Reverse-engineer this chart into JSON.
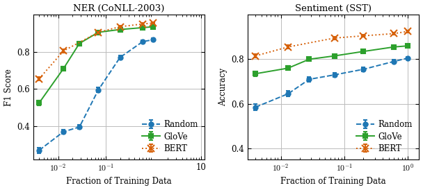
{
  "ner": {
    "title": "NER (CoNLL-2003)",
    "xlabel": "Fraction of Training Data",
    "ylabel": "F1 Score",
    "xlim": [
      0.003,
      12
    ],
    "ylim": [
      0.22,
      1.0
    ],
    "yticks": [
      0.4,
      0.6,
      0.8
    ],
    "xticks": [
      0.01,
      0.1,
      10
    ],
    "xticklabels": [
      "$10^{-2}$",
      "$10^{-1}$",
      "10"
    ],
    "random": {
      "x": [
        0.004,
        0.013,
        0.028,
        0.07,
        0.2,
        0.6,
        1.0
      ],
      "y": [
        0.27,
        0.37,
        0.395,
        0.595,
        0.77,
        0.855,
        0.865
      ],
      "yerr": [
        0.015,
        0.012,
        0.012,
        0.012,
        0.01,
        0.008,
        0.008
      ],
      "color": "#1f77b4",
      "linestyle": "--",
      "marker": "o",
      "label": "Random"
    },
    "glove": {
      "x": [
        0.004,
        0.013,
        0.028,
        0.07,
        0.2,
        0.6,
        1.0
      ],
      "y": [
        0.525,
        0.71,
        0.845,
        0.905,
        0.92,
        0.93,
        0.935
      ],
      "yerr": [
        0.012,
        0.01,
        0.008,
        0.006,
        0.005,
        0.005,
        0.004
      ],
      "color": "#2ca02c",
      "linestyle": "-",
      "marker": "s",
      "label": "GloVe"
    },
    "bert": {
      "x": [
        0.004,
        0.013,
        0.07,
        0.2,
        0.6,
        1.0
      ],
      "y": [
        0.655,
        0.805,
        0.905,
        0.935,
        0.95,
        0.955
      ],
      "yerr": [
        0.01,
        0.009,
        0.006,
        0.005,
        0.004,
        0.004
      ],
      "color": "#d6610a",
      "linestyle": ":",
      "marker": "x",
      "label": "BERT"
    }
  },
  "sst": {
    "title": "Sentiment (SST)",
    "xlabel": "Fraction of Training Data",
    "ylabel": "Accuracy",
    "xlim": [
      0.003,
      1.5
    ],
    "ylim": [
      0.35,
      1.0
    ],
    "yticks": [
      0.4,
      0.6,
      0.8
    ],
    "xticks": [
      0.01,
      0.1,
      1.0
    ],
    "xticklabels": [
      "$10^{-2}$",
      "$10^{-1}$",
      "$10^{0}$"
    ],
    "random": {
      "x": [
        0.004,
        0.013,
        0.028,
        0.07,
        0.2,
        0.6,
        1.0
      ],
      "y": [
        0.585,
        0.645,
        0.71,
        0.73,
        0.755,
        0.79,
        0.805
      ],
      "yerr": [
        0.015,
        0.012,
        0.01,
        0.01,
        0.009,
        0.008,
        0.007
      ],
      "color": "#1f77b4",
      "linestyle": "--",
      "marker": "o",
      "label": "Random"
    },
    "glove": {
      "x": [
        0.004,
        0.013,
        0.028,
        0.07,
        0.2,
        0.6,
        1.0
      ],
      "y": [
        0.735,
        0.76,
        0.8,
        0.815,
        0.835,
        0.855,
        0.86
      ],
      "yerr": [
        0.01,
        0.009,
        0.008,
        0.007,
        0.006,
        0.006,
        0.005
      ],
      "color": "#2ca02c",
      "linestyle": "-",
      "marker": "s",
      "label": "GloVe"
    },
    "bert": {
      "x": [
        0.004,
        0.013,
        0.07,
        0.2,
        0.6,
        1.0
      ],
      "y": [
        0.815,
        0.855,
        0.895,
        0.905,
        0.915,
        0.925
      ],
      "yerr": [
        0.009,
        0.008,
        0.006,
        0.005,
        0.005,
        0.004
      ],
      "color": "#d6610a",
      "linestyle": ":",
      "marker": "x",
      "label": "BERT"
    }
  },
  "background_color": "#ffffff",
  "grid_color": "#bbbbbb",
  "figsize": [
    6.08,
    2.74
  ],
  "dpi": 100
}
